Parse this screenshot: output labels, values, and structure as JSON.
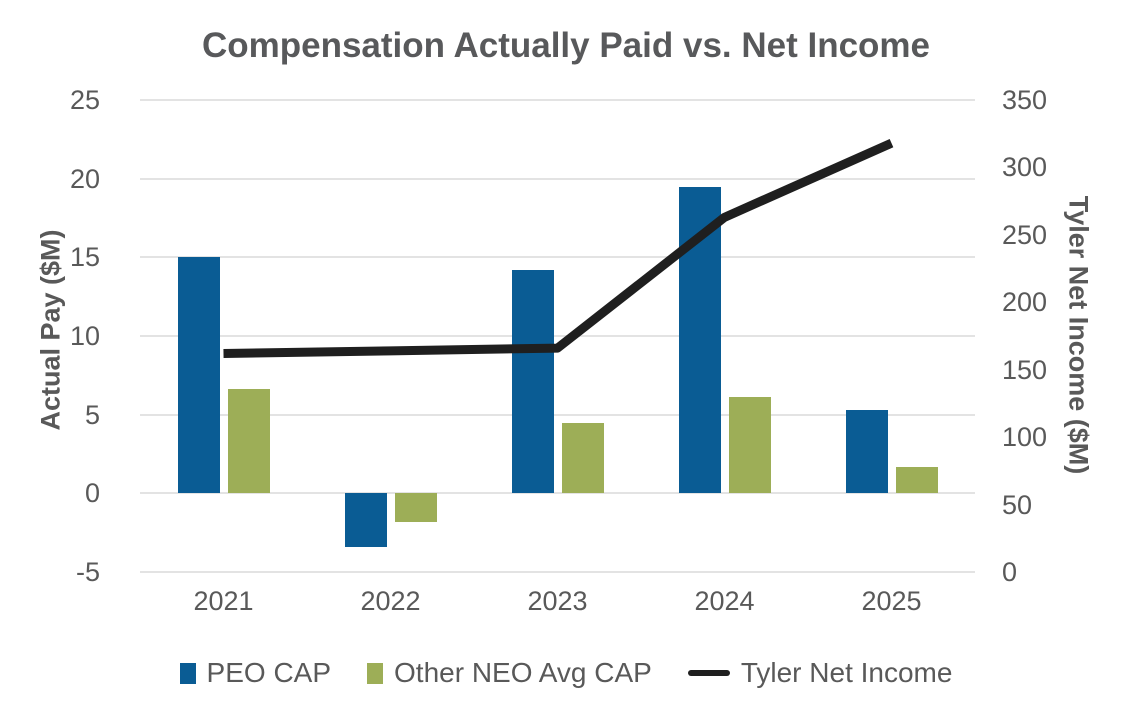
{
  "chart_data": {
    "type": "combo-bar-line",
    "title": "Compensation Actually Paid vs. Net Income",
    "categories": [
      "2021",
      "2022",
      "2023",
      "2024",
      "2025"
    ],
    "series": [
      {
        "name": "PEO CAP",
        "type": "bar",
        "axis": "left",
        "color": "#0A5C94",
        "values": [
          15.0,
          -3.4,
          14.2,
          19.5,
          5.3
        ]
      },
      {
        "name": "Other NEO Avg CAP",
        "type": "bar",
        "axis": "left",
        "color": "#9DAE57",
        "values": [
          6.6,
          -1.8,
          4.5,
          6.1,
          1.7
        ]
      },
      {
        "name": "Tyler Net Income",
        "type": "line",
        "axis": "right",
        "color": "#1F1F1F",
        "values": [
          162,
          164,
          166,
          263,
          318
        ]
      }
    ],
    "left_axis": {
      "label": "Actual Pay ($M)",
      "min": -5,
      "max": 25,
      "ticks": [
        25,
        20,
        15,
        10,
        5,
        0,
        -5
      ]
    },
    "right_axis": {
      "label": "Tyler Net Income ($M)",
      "min": 0,
      "max": 350,
      "ticks": [
        350,
        300,
        250,
        200,
        150,
        100,
        50,
        0
      ]
    },
    "grid": "horizontal",
    "legend_position": "bottom",
    "colors": {
      "grid": "#E3E3E3",
      "tick_text": "#595959",
      "title_text": "#58595B"
    }
  }
}
